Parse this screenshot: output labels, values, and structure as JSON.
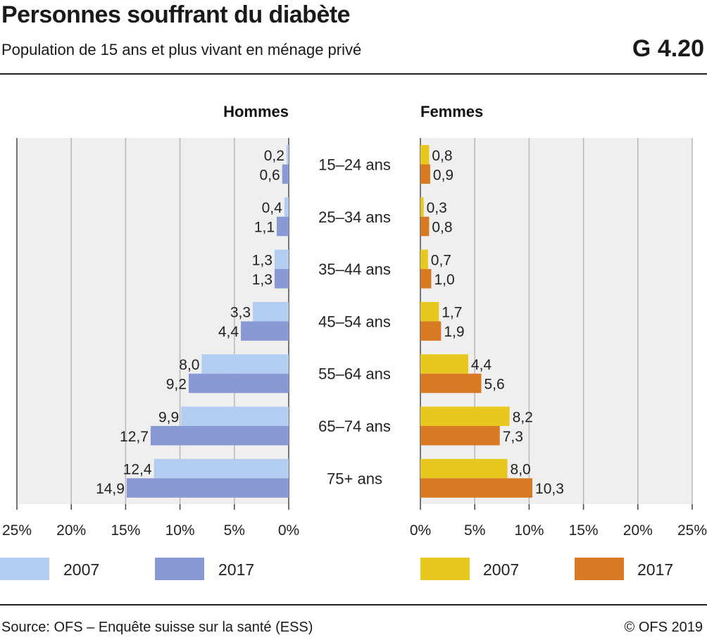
{
  "header": {
    "title": "Personnes souffrant du diabète",
    "subtitle": "Population de 15 ans et plus vivant en ménage privé",
    "code": "G 4.20"
  },
  "footer": {
    "source": "Source: OFS – Enquête suisse sur la santé (ESS)",
    "copyright": "© OFS 2019"
  },
  "chart_data": {
    "type": "bar",
    "orientation": "horizontal-population-pyramid",
    "unit": "%",
    "xlim": [
      0,
      25
    ],
    "xticks": [
      0,
      5,
      10,
      15,
      20,
      25
    ],
    "tick_labels": [
      "0%",
      "5%",
      "10%",
      "15%",
      "20%",
      "25%"
    ],
    "grid": true,
    "categories": [
      "15–24 ans",
      "25–34 ans",
      "35–44 ans",
      "45–54 ans",
      "55–64 ans",
      "65–74 ans",
      "75+ ans"
    ],
    "panels": [
      {
        "name": "Hommes",
        "side": "left",
        "series": [
          {
            "name": "2007",
            "color": "#b3cdf0",
            "values": [
              0.2,
              0.4,
              1.3,
              3.3,
              8.0,
              9.9,
              12.4
            ],
            "labels": [
              "0,2",
              "0,4",
              "1,3",
              "3,3",
              "8,0",
              "9,9",
              "12,4"
            ]
          },
          {
            "name": "2017",
            "color": "#8899d4",
            "values": [
              0.6,
              1.1,
              1.3,
              4.4,
              9.2,
              12.7,
              14.9
            ],
            "labels": [
              "0,6",
              "1,1",
              "1,3",
              "4,4",
              "9,2",
              "12,7",
              "14,9"
            ]
          }
        ]
      },
      {
        "name": "Femmes",
        "side": "right",
        "series": [
          {
            "name": "2007",
            "color": "#e8c81e",
            "values": [
              0.8,
              0.3,
              0.7,
              1.7,
              4.4,
              8.2,
              8.0
            ],
            "labels": [
              "0,8",
              "0,3",
              "0,7",
              "1,7",
              "4,4",
              "8,2",
              "8,0"
            ]
          },
          {
            "name": "2017",
            "color": "#d87a24",
            "values": [
              0.9,
              0.8,
              1.0,
              1.9,
              5.6,
              7.3,
              10.3
            ],
            "labels": [
              "0,9",
              "0,8",
              "1,0",
              "1,9",
              "5,6",
              "7,3",
              "10,3"
            ]
          }
        ]
      }
    ],
    "legend_placement": "bottom"
  }
}
